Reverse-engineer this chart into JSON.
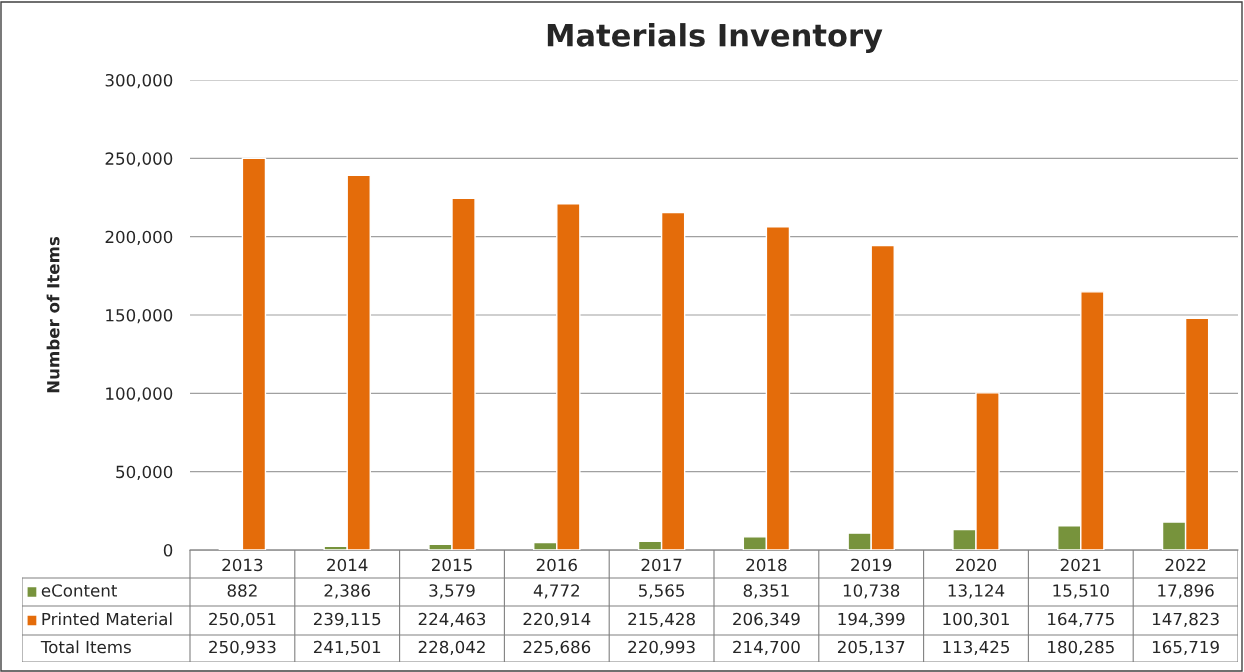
{
  "chart_data": {
    "type": "bar",
    "title": "Materials Inventory",
    "ylabel": "Number of Items",
    "categories": [
      "2013",
      "2014",
      "2015",
      "2016",
      "2017",
      "2018",
      "2019",
      "2020",
      "2021",
      "2022"
    ],
    "series": [
      {
        "name": "eContent",
        "color": "#77933c",
        "values": [
          882,
          2386,
          3579,
          4772,
          5565,
          8351,
          10738,
          13124,
          15510,
          17896
        ],
        "value_labels": [
          "882",
          "2,386",
          "3,579",
          "4,772",
          "5,565",
          "8,351",
          "10,738",
          "13,124",
          "15,510",
          "17,896"
        ]
      },
      {
        "name": "Printed Material",
        "color": "#e46c0a",
        "values": [
          250051,
          239115,
          224463,
          220914,
          215428,
          206349,
          194399,
          100301,
          164775,
          147823
        ],
        "value_labels": [
          "250,051",
          "239,115",
          "224,463",
          "220,914",
          "215,428",
          "206,349",
          "194,399",
          "100,301",
          "164,775",
          "147,823"
        ]
      }
    ],
    "annotations": [
      "Total Items",
      "250,933",
      "241,501",
      "228,042",
      "225,686",
      "220,993",
      "214,700",
      "205,137",
      "113,425",
      "180,285",
      "165,719"
    ],
    "legend": "bottom left",
    "ylim": [
      0,
      300000
    ],
    "yticks": [
      {
        "value": 0,
        "label": "0"
      },
      {
        "value": 50000,
        "label": "50,000"
      },
      {
        "value": 100000,
        "label": "100,000"
      },
      {
        "value": 150000,
        "label": "150,000"
      },
      {
        "value": 200000,
        "label": "200,000"
      },
      {
        "value": 250000,
        "label": "250,000"
      },
      {
        "value": 300000,
        "label": "300,000"
      }
    ],
    "grid": "y"
  }
}
